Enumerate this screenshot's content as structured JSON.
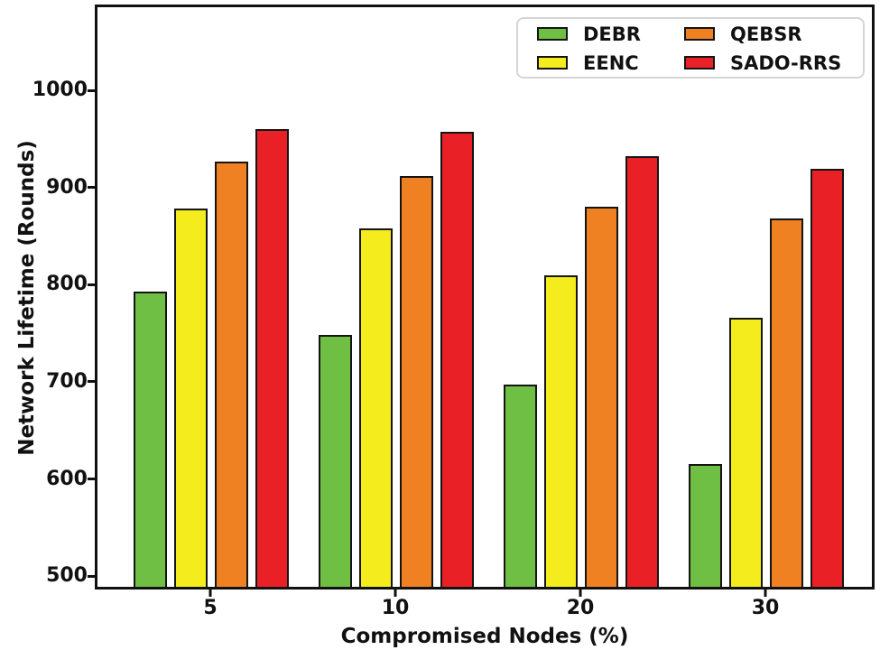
{
  "figure": {
    "background": "#ffffff",
    "frame_color": "#111111"
  },
  "chart_data": {
    "type": "bar",
    "title": "",
    "xlabel": "Compromised Nodes (%)",
    "ylabel": "Network Lifetime (Rounds)",
    "categories": [
      "5",
      "10",
      "20",
      "30"
    ],
    "series": [
      {
        "name": "DEBR",
        "color": "#6fbf45",
        "values": [
          793,
          748,
          697,
          615
        ]
      },
      {
        "name": "EENC",
        "color": "#f4ec1c",
        "values": [
          878,
          858,
          810,
          766
        ]
      },
      {
        "name": "QEBSR",
        "color": "#f08122",
        "values": [
          927,
          912,
          880,
          868
        ]
      },
      {
        "name": "SADO-RRS",
        "color": "#ea2027",
        "values": [
          960,
          957,
          932,
          919
        ]
      }
    ],
    "yticks": [
      500,
      600,
      700,
      800,
      900,
      1000
    ],
    "ylim": [
      489,
      1086
    ],
    "bar_edge_color": "#141414",
    "grid": false,
    "legend_position": "upper right",
    "legend_columns": 2
  }
}
